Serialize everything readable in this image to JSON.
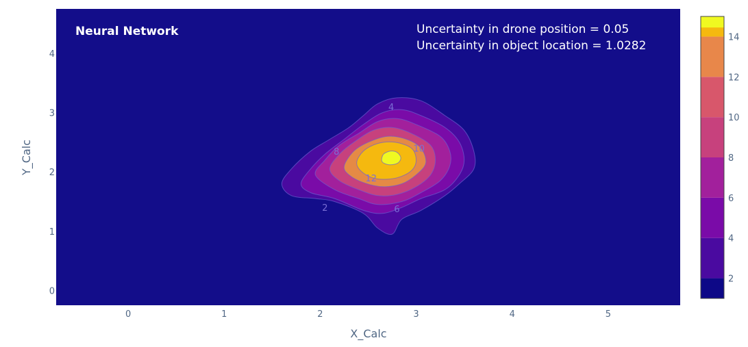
{
  "chart_data": {
    "type": "contour",
    "title": "",
    "xlabel": "X_Calc",
    "ylabel": "Y_Calc",
    "x_ticks": [
      0,
      1,
      2,
      3,
      4,
      5
    ],
    "y_ticks": [
      0,
      1,
      2,
      3,
      4
    ],
    "xlim": [
      -0.75,
      5.75
    ],
    "ylim": [
      -0.25,
      4.75
    ],
    "grid": false,
    "annotations": {
      "method": "Neural Network",
      "line1": "Uncertainty in drone position  = 0.05",
      "line2": "Uncertainty in object location = 1.0282"
    },
    "peak": {
      "x": 2.74,
      "y": 2.25,
      "value": 15
    },
    "contour_levels": [
      {
        "level": 2,
        "label": "2",
        "label_pos": [
          2.05,
          1.4
        ],
        "points": [
          [
            1.6,
            1.8
          ],
          [
            1.7,
            2.05
          ],
          [
            1.9,
            2.35
          ],
          [
            2.1,
            2.55
          ],
          [
            2.3,
            2.75
          ],
          [
            2.45,
            2.95
          ],
          [
            2.6,
            3.15
          ],
          [
            2.8,
            3.25
          ],
          [
            3.05,
            3.2
          ],
          [
            3.3,
            2.95
          ],
          [
            3.5,
            2.7
          ],
          [
            3.6,
            2.35
          ],
          [
            3.6,
            2.05
          ],
          [
            3.45,
            1.8
          ],
          [
            3.3,
            1.6
          ],
          [
            3.05,
            1.35
          ],
          [
            2.85,
            1.2
          ],
          [
            2.75,
            0.95
          ],
          [
            2.6,
            1.05
          ],
          [
            2.45,
            1.3
          ],
          [
            2.15,
            1.5
          ],
          [
            1.95,
            1.55
          ],
          [
            1.7,
            1.6
          ]
        ]
      },
      {
        "level": 4,
        "label": "4",
        "label_pos": [
          2.74,
          3.1
        ],
        "points": [
          [
            1.8,
            1.8
          ],
          [
            1.9,
            2.05
          ],
          [
            2.05,
            2.3
          ],
          [
            2.25,
            2.55
          ],
          [
            2.45,
            2.8
          ],
          [
            2.65,
            3.0
          ],
          [
            2.85,
            3.05
          ],
          [
            3.05,
            2.95
          ],
          [
            3.3,
            2.75
          ],
          [
            3.45,
            2.5
          ],
          [
            3.5,
            2.2
          ],
          [
            3.45,
            1.95
          ],
          [
            3.3,
            1.7
          ],
          [
            3.05,
            1.55
          ],
          [
            2.85,
            1.4
          ],
          [
            2.65,
            1.3
          ],
          [
            2.45,
            1.35
          ],
          [
            2.15,
            1.55
          ],
          [
            1.9,
            1.65
          ]
        ]
      },
      {
        "level": 6,
        "label": "6",
        "label_pos": [
          2.8,
          1.38
        ],
        "points": [
          [
            1.95,
            1.95
          ],
          [
            2.05,
            2.2
          ],
          [
            2.2,
            2.45
          ],
          [
            2.4,
            2.65
          ],
          [
            2.6,
            2.85
          ],
          [
            2.8,
            2.9
          ],
          [
            3.0,
            2.8
          ],
          [
            3.25,
            2.6
          ],
          [
            3.35,
            2.35
          ],
          [
            3.35,
            2.1
          ],
          [
            3.25,
            1.85
          ],
          [
            3.05,
            1.65
          ],
          [
            2.85,
            1.5
          ],
          [
            2.6,
            1.45
          ],
          [
            2.4,
            1.55
          ],
          [
            2.15,
            1.7
          ]
        ]
      },
      {
        "level": 8,
        "label": "8",
        "label_pos": [
          2.17,
          2.35
        ],
        "points": [
          [
            2.1,
            2.05
          ],
          [
            2.2,
            2.3
          ],
          [
            2.35,
            2.5
          ],
          [
            2.55,
            2.7
          ],
          [
            2.75,
            2.75
          ],
          [
            2.95,
            2.65
          ],
          [
            3.15,
            2.45
          ],
          [
            3.2,
            2.2
          ],
          [
            3.15,
            1.95
          ],
          [
            3.0,
            1.75
          ],
          [
            2.8,
            1.62
          ],
          [
            2.6,
            1.6
          ],
          [
            2.4,
            1.7
          ],
          [
            2.2,
            1.85
          ]
        ]
      },
      {
        "level": 10,
        "label": "10",
        "label_pos": [
          3.03,
          2.4
        ],
        "points": [
          [
            2.25,
            2.1
          ],
          [
            2.35,
            2.35
          ],
          [
            2.5,
            2.5
          ],
          [
            2.7,
            2.6
          ],
          [
            2.9,
            2.55
          ],
          [
            3.05,
            2.4
          ],
          [
            3.1,
            2.15
          ],
          [
            3.0,
            1.95
          ],
          [
            2.85,
            1.8
          ],
          [
            2.65,
            1.75
          ],
          [
            2.45,
            1.82
          ],
          [
            2.3,
            1.95
          ]
        ]
      },
      {
        "level": 12,
        "label": "12",
        "label_pos": [
          2.53,
          1.9
        ],
        "points": [
          [
            2.38,
            2.15
          ],
          [
            2.45,
            2.35
          ],
          [
            2.6,
            2.48
          ],
          [
            2.78,
            2.5
          ],
          [
            2.95,
            2.4
          ],
          [
            3.0,
            2.2
          ],
          [
            2.95,
            2.02
          ],
          [
            2.8,
            1.9
          ],
          [
            2.6,
            1.88
          ],
          [
            2.45,
            1.98
          ]
        ]
      },
      {
        "level": 14,
        "label": "",
        "label_pos": null,
        "points": [
          [
            2.64,
            2.2
          ],
          [
            2.66,
            2.3
          ],
          [
            2.73,
            2.35
          ],
          [
            2.8,
            2.33
          ],
          [
            2.84,
            2.24
          ],
          [
            2.81,
            2.15
          ],
          [
            2.73,
            2.12
          ],
          [
            2.66,
            2.15
          ]
        ]
      }
    ],
    "colorscale": {
      "bands": [
        {
          "from": 1,
          "to": 2,
          "color": "#0d0887"
        },
        {
          "from": 2,
          "to": 4,
          "color": "#46039f"
        },
        {
          "from": 4,
          "to": 6,
          "color": "#7201a8"
        },
        {
          "from": 6,
          "to": 8,
          "color": "#9c179e"
        },
        {
          "from": 8,
          "to": 10,
          "color": "#bd3786"
        },
        {
          "from": 10,
          "to": 12,
          "color": "#d8576b"
        },
        {
          "from": 12,
          "to": 14,
          "color": "#ed7953"
        },
        {
          "from": 14,
          "to": 15,
          "color": "#fdb42f"
        }
      ],
      "peak_color": "#f0f921",
      "background_color": "#130d8a",
      "ticks": [
        2,
        4,
        6,
        8,
        10,
        12,
        14
      ],
      "range": [
        1,
        15
      ]
    },
    "level_fill_colors": {
      "2": "#4a0aa0",
      "4": "#7a0ba8",
      "6": "#a2209c",
      "8": "#c7417d",
      "10": "#e58a45",
      "12": "#f5b90f",
      "14": "#f0f921"
    }
  }
}
